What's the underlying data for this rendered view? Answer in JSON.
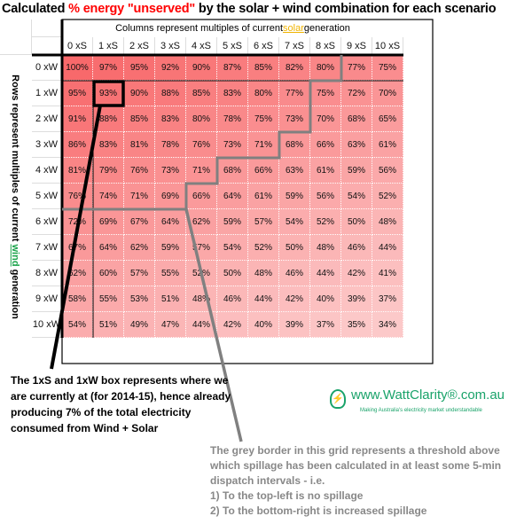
{
  "title": {
    "pre": "Calculated ",
    "highlight": "% energy \"unserved\"",
    "post": " by the solar + wind combination for each scenario"
  },
  "column_header": {
    "pre": "Columns represent multiples of current ",
    "highlight": "solar",
    "post": " generation"
  },
  "row_header": {
    "pre": "Rows represent multiples of current ",
    "highlight": "wind",
    "post": " generation"
  },
  "colors": {
    "high": "#f8696b",
    "low": "#fcc9c9",
    "threshold_border": "#808080",
    "current_box": "#000000",
    "solar": "#f0b400",
    "wind": "#1aa34a",
    "logo": "#1aa36a"
  },
  "chart_data": {
    "type": "heatmap",
    "x_categories": [
      "0 xS",
      "1 xS",
      "2 xS",
      "3 xS",
      "4 xS",
      "5 xS",
      "6 xS",
      "7 xS",
      "8 xS",
      "9 xS",
      "10 xS"
    ],
    "y_categories": [
      "0 xW",
      "1 xW",
      "2 xW",
      "3 xW",
      "4 xW",
      "5 xW",
      "6 xW",
      "7 xW",
      "8 xW",
      "9 xW",
      "10 xW"
    ],
    "unit": "%",
    "values": [
      [
        100,
        97,
        95,
        92,
        90,
        87,
        85,
        82,
        80,
        77,
        75
      ],
      [
        95,
        93,
        90,
        88,
        85,
        83,
        80,
        77,
        75,
        72,
        70
      ],
      [
        91,
        88,
        85,
        83,
        80,
        78,
        75,
        73,
        70,
        68,
        65
      ],
      [
        86,
        83,
        81,
        78,
        76,
        73,
        71,
        68,
        66,
        63,
        61
      ],
      [
        81,
        79,
        76,
        73,
        71,
        68,
        66,
        63,
        61,
        59,
        56
      ],
      [
        76,
        74,
        71,
        69,
        66,
        64,
        61,
        59,
        56,
        54,
        52
      ],
      [
        72,
        69,
        67,
        64,
        62,
        59,
        57,
        54,
        52,
        50,
        48
      ],
      [
        67,
        64,
        62,
        59,
        57,
        54,
        52,
        50,
        48,
        46,
        44
      ],
      [
        62,
        60,
        57,
        55,
        52,
        50,
        48,
        46,
        44,
        42,
        41
      ],
      [
        58,
        55,
        53,
        51,
        48,
        46,
        44,
        42,
        40,
        39,
        37
      ],
      [
        54,
        51,
        49,
        47,
        44,
        42,
        40,
        39,
        37,
        35,
        34
      ]
    ],
    "current_cell": {
      "x": "1 xS",
      "y": "1 xW"
    },
    "spillage_threshold_first_spill_column_per_row": [
      9,
      8,
      8,
      7,
      5,
      4,
      0,
      0,
      0,
      0,
      0
    ]
  },
  "annotations": {
    "current": "The 1xS and 1xW box represents where we are currently at (for 2014-15), hence already producing 7% of the total electricity consumed from Wind + Solar",
    "threshold_lines": [
      "The grey border in this grid represents a threshold above which spillage has been calculated in at least some 5-min dispatch intervals - i.e.",
      "1)  To the top-left is no spillage",
      "2)  To the bottom-right is increased spillage"
    ]
  },
  "logo": {
    "name": "www.WattClarity®.com.au",
    "tagline": "Making Australia's electricity market understandable"
  }
}
